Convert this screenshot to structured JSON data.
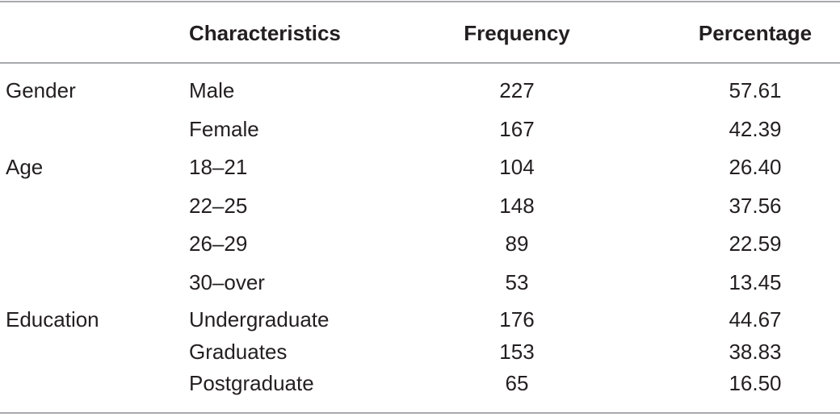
{
  "header": {
    "group": "",
    "characteristics": "Characteristics",
    "frequency": "Frequency",
    "percentage": "Percentage"
  },
  "rows": [
    {
      "group": "Gender",
      "characteristic": "Male",
      "frequency": "227",
      "percentage": "57.61"
    },
    {
      "group": "",
      "characteristic": "Female",
      "frequency": "167",
      "percentage": "42.39"
    },
    {
      "group": "Age",
      "characteristic": "18–21",
      "frequency": "104",
      "percentage": "26.40"
    },
    {
      "group": "",
      "characteristic": "22–25",
      "frequency": "148",
      "percentage": "37.56"
    },
    {
      "group": "",
      "characteristic": "26–29",
      "frequency": "89",
      "percentage": "22.59"
    },
    {
      "group": "",
      "characteristic": "30–over",
      "frequency": "53",
      "percentage": "13.45"
    },
    {
      "group": "Education",
      "characteristic": "Undergraduate",
      "frequency": "176",
      "percentage": "44.67"
    },
    {
      "group": "",
      "characteristic": "Graduates",
      "frequency": "153",
      "percentage": "38.83"
    },
    {
      "group": "",
      "characteristic": "Postgraduate",
      "frequency": "65",
      "percentage": "16.50"
    }
  ]
}
